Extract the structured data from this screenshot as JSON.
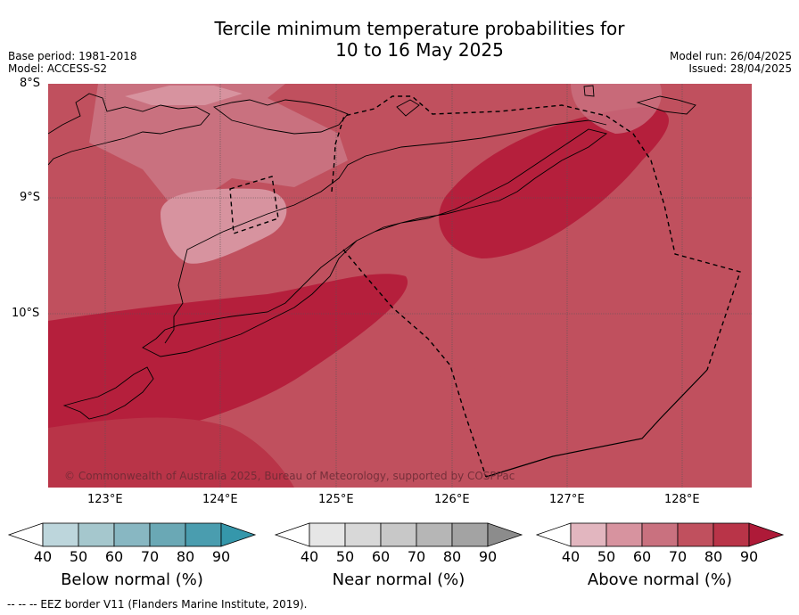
{
  "title_line1": "Tercile minimum temperature probabilities for",
  "title_line2": "10 to 16 May 2025",
  "meta_left": {
    "base_period": "Base period: 1981-2018",
    "model": "Model: ACCESS-S2"
  },
  "meta_right": {
    "model_run": "Model run: 26/04/2025",
    "issued": "Issued: 28/04/2025"
  },
  "map": {
    "lat_labels": [
      "8°S",
      "9°S",
      "10°S"
    ],
    "lon_labels": [
      "123°E",
      "124°E",
      "125°E",
      "126°E",
      "127°E",
      "128°E"
    ],
    "copyright": "© Commonwealth of Australia 2025, Bureau of Meteorology, supported by COSPPac"
  },
  "colorbars": [
    {
      "label": "Below normal (%)",
      "ticks": [
        "40",
        "50",
        "60",
        "70",
        "80",
        "90"
      ],
      "colors": [
        "#ffffff",
        "#bdd6dc",
        "#a5c7cd",
        "#88b7c2",
        "#6aa8b5",
        "#4a9daf",
        "#3597ab"
      ]
    },
    {
      "label": "Near normal (%)",
      "ticks": [
        "40",
        "50",
        "60",
        "70",
        "80",
        "90"
      ],
      "colors": [
        "#ffffff",
        "#e6e6e6",
        "#d8d8d8",
        "#c8c8c8",
        "#b6b6b6",
        "#a3a3a3",
        "#8c8c8c"
      ]
    },
    {
      "label": "Above normal (%)",
      "ticks": [
        "40",
        "50",
        "60",
        "70",
        "80",
        "90"
      ],
      "colors": [
        "#ffffff",
        "#e2b6bf",
        "#d7939f",
        "#c9717f",
        "#c0505e",
        "#b93448",
        "#ae1a38"
      ]
    }
  ],
  "footnote": "--  --  -- EEZ border V11 (Flanders Marine Institute, 2019)."
}
